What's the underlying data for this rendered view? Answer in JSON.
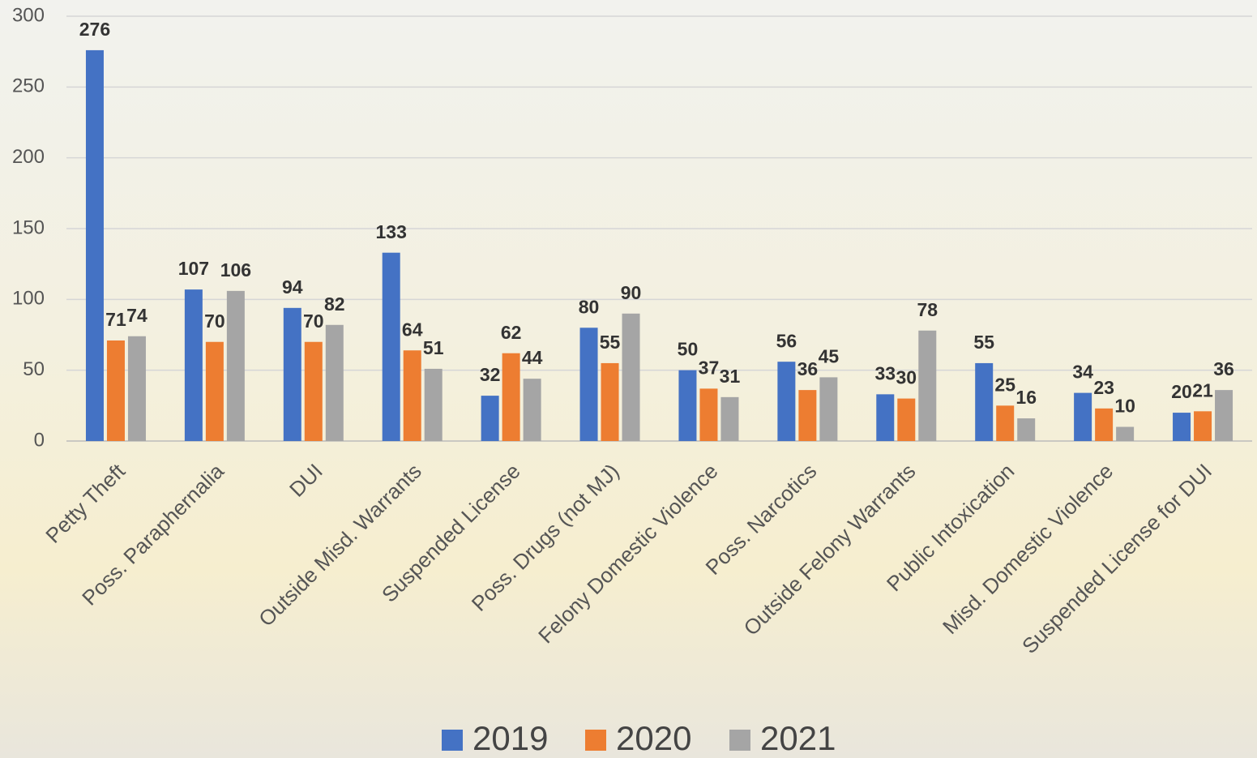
{
  "chart_data": {
    "type": "bar",
    "categories": [
      "Petty Theft",
      "Poss. Paraphernalia",
      "DUI",
      "Outside Misd. Warrants",
      "Suspended License",
      "Poss. Drugs (not MJ)",
      "Felony Domestic Violence",
      "Poss. Narcotics",
      "Outside Felony Warrants",
      "Public Intoxication",
      "Misd. Domestic Violence",
      "Suspended License for DUI"
    ],
    "series": [
      {
        "name": "2019",
        "color": "#4472c4",
        "values": [
          276,
          107,
          94,
          133,
          32,
          80,
          50,
          56,
          33,
          55,
          34,
          20
        ]
      },
      {
        "name": "2020",
        "color": "#ed7d31",
        "values": [
          71,
          70,
          70,
          64,
          62,
          55,
          37,
          36,
          30,
          25,
          23,
          21
        ]
      },
      {
        "name": "2021",
        "color": "#a5a5a5",
        "values": [
          74,
          106,
          82,
          51,
          44,
          90,
          31,
          45,
          78,
          16,
          10,
          36
        ]
      }
    ],
    "ylim": [
      0,
      300
    ],
    "yticks": [
      0,
      50,
      100,
      150,
      200,
      250,
      300
    ],
    "grid": true,
    "legend": "bottom"
  }
}
